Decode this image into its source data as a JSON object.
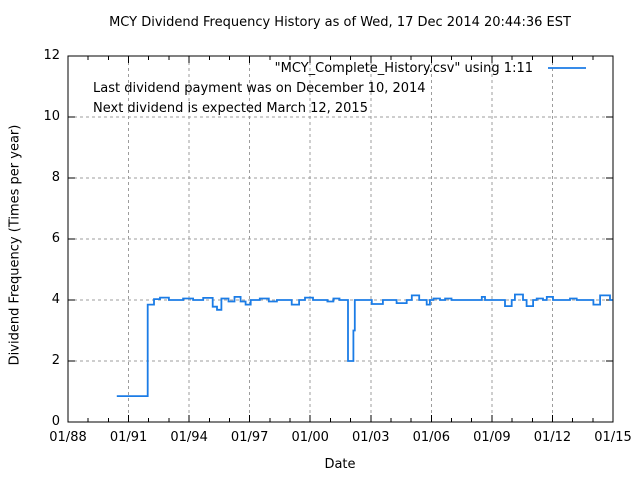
{
  "window": {
    "title": "MCY Dividend Frequency History"
  },
  "colors": {
    "background": "#ffffff",
    "line": "#1b7ce6",
    "grid": "#9c9c9c",
    "axis": "#000000",
    "text": "#000000"
  },
  "chart_data": {
    "type": "line",
    "line_style": "steps",
    "title": "MCY Dividend Frequency History as of Wed, 17 Dec 2014 20:44:36 EST",
    "xlabel": "Date",
    "ylabel": "Dividend Frequency (Times per year)",
    "xlim": [
      1988,
      2015
    ],
    "ylim": [
      0,
      12
    ],
    "grid": "dashed major both axes",
    "legend_position": "top-right-inside",
    "x_ticks": [
      {
        "v": 1988,
        "label": "01/88"
      },
      {
        "v": 1991,
        "label": "01/91"
      },
      {
        "v": 1994,
        "label": "01/94"
      },
      {
        "v": 1997,
        "label": "01/97"
      },
      {
        "v": 2000,
        "label": "01/00"
      },
      {
        "v": 2003,
        "label": "01/03"
      },
      {
        "v": 2006,
        "label": "01/06"
      },
      {
        "v": 2009,
        "label": "01/09"
      },
      {
        "v": 2012,
        "label": "01/12"
      },
      {
        "v": 2015,
        "label": "01/15"
      }
    ],
    "x_minor_tick_interval_years": 1,
    "y_ticks": [
      {
        "v": 0,
        "label": "0"
      },
      {
        "v": 2,
        "label": "2"
      },
      {
        "v": 4,
        "label": "4"
      },
      {
        "v": 6,
        "label": "6"
      },
      {
        "v": 8,
        "label": "8"
      },
      {
        "v": 10,
        "label": "10"
      },
      {
        "v": 12,
        "label": "12"
      }
    ],
    "annotations": [
      "Last dividend payment was on December 10, 2014",
      "Next dividend is expected March 12, 2015"
    ],
    "series": [
      {
        "name": "\"MCY_Complete_History.csv\" using 1:11",
        "color": "#1b7ce6",
        "points": [
          [
            1990.42,
            0.85
          ],
          [
            1991.95,
            3.85
          ],
          [
            1992.26,
            4.03
          ],
          [
            1992.56,
            4.08
          ],
          [
            1993.0,
            4.0
          ],
          [
            1993.7,
            4.05
          ],
          [
            1994.2,
            4.0
          ],
          [
            1994.7,
            4.07
          ],
          [
            1995.17,
            3.78
          ],
          [
            1995.38,
            3.68
          ],
          [
            1995.6,
            4.05
          ],
          [
            1995.95,
            3.95
          ],
          [
            1996.25,
            4.1
          ],
          [
            1996.55,
            3.95
          ],
          [
            1996.8,
            3.85
          ],
          [
            1997.05,
            4.0
          ],
          [
            1997.5,
            4.05
          ],
          [
            1997.95,
            3.95
          ],
          [
            1998.35,
            4.0
          ],
          [
            1999.08,
            3.85
          ],
          [
            1999.45,
            4.0
          ],
          [
            1999.74,
            4.08
          ],
          [
            2000.14,
            4.0
          ],
          [
            2000.85,
            3.95
          ],
          [
            2001.15,
            4.05
          ],
          [
            2001.45,
            4.0
          ],
          [
            2001.87,
            2.0
          ],
          [
            2002.14,
            3.0
          ],
          [
            2002.21,
            4.0
          ],
          [
            2003.05,
            3.87
          ],
          [
            2003.6,
            4.0
          ],
          [
            2004.28,
            3.9
          ],
          [
            2004.78,
            4.0
          ],
          [
            2005.03,
            4.15
          ],
          [
            2005.4,
            4.0
          ],
          [
            2005.77,
            3.85
          ],
          [
            2005.93,
            4.0
          ],
          [
            2006.1,
            4.05
          ],
          [
            2006.43,
            4.0
          ],
          [
            2006.68,
            4.05
          ],
          [
            2007.0,
            4.0
          ],
          [
            2008.5,
            4.1
          ],
          [
            2008.66,
            4.0
          ],
          [
            2009.65,
            3.8
          ],
          [
            2009.98,
            4.0
          ],
          [
            2010.14,
            4.18
          ],
          [
            2010.54,
            4.0
          ],
          [
            2010.72,
            3.8
          ],
          [
            2011.04,
            4.0
          ],
          [
            2011.22,
            4.05
          ],
          [
            2011.53,
            4.0
          ],
          [
            2011.72,
            4.1
          ],
          [
            2012.03,
            4.0
          ],
          [
            2012.87,
            4.05
          ],
          [
            2013.2,
            4.0
          ],
          [
            2014.03,
            3.85
          ],
          [
            2014.36,
            4.15
          ],
          [
            2014.85,
            4.0
          ],
          [
            2014.98,
            4.0
          ]
        ]
      }
    ]
  }
}
